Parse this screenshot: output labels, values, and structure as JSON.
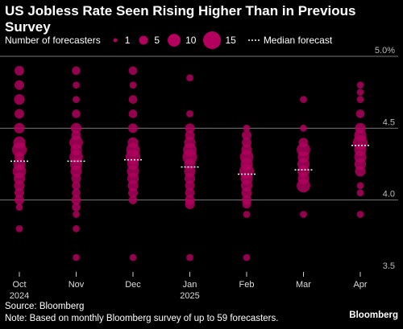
{
  "title": "US Jobless Rate Seen Rising Higher Than in Previous Survey",
  "legend": {
    "size_label": "Number of forecasters",
    "sizes": [
      "1",
      "5",
      "10",
      "15"
    ],
    "median_label": "Median forecast"
  },
  "colors": {
    "bubble": "#b3005e",
    "median": "#ffffff",
    "background": "#000000"
  },
  "footer": {
    "source": "Source: Bloomberg",
    "note": "Note: Based on monthly Bloomberg survey of up to 59 forecasters."
  },
  "brand": "Bloomberg",
  "chart_data": {
    "type": "scatter",
    "title": "US Jobless Rate Seen Rising Higher Than in Previous Survey",
    "ylim": [
      3.5,
      5.0
    ],
    "y_ticks": [
      "3.5",
      "4.0",
      "4.5",
      "5.0%"
    ],
    "categories": [
      {
        "label": "Oct",
        "sublabel": "2024"
      },
      {
        "label": "Nov",
        "sublabel": ""
      },
      {
        "label": "Dec",
        "sublabel": ""
      },
      {
        "label": "Jan",
        "sublabel": "2025"
      },
      {
        "label": "Feb",
        "sublabel": ""
      },
      {
        "label": "Mar",
        "sublabel": ""
      },
      {
        "label": "Apr",
        "sublabel": ""
      }
    ],
    "medians": [
      4.27,
      4.27,
      4.28,
      4.23,
      4.18,
      4.21,
      4.38
    ],
    "points": [
      [
        [
          4.9,
          3
        ],
        [
          4.8,
          3
        ],
        [
          4.7,
          4
        ],
        [
          4.6,
          3
        ],
        [
          4.5,
          4
        ],
        [
          4.4,
          6
        ],
        [
          4.35,
          10
        ],
        [
          4.3,
          3
        ],
        [
          4.25,
          6
        ],
        [
          4.2,
          8
        ],
        [
          4.15,
          5
        ],
        [
          4.1,
          4
        ],
        [
          4.05,
          3
        ],
        [
          4.0,
          3
        ],
        [
          3.95,
          1
        ],
        [
          3.8,
          1
        ]
      ],
      [
        [
          4.9,
          2
        ],
        [
          4.8,
          1
        ],
        [
          4.7,
          1
        ],
        [
          4.6,
          2
        ],
        [
          4.5,
          4
        ],
        [
          4.45,
          3
        ],
        [
          4.4,
          8
        ],
        [
          4.35,
          5
        ],
        [
          4.3,
          8
        ],
        [
          4.25,
          6
        ],
        [
          4.2,
          5
        ],
        [
          4.15,
          3
        ],
        [
          4.1,
          2
        ],
        [
          4.05,
          2
        ],
        [
          4.0,
          3
        ],
        [
          3.95,
          2
        ],
        [
          3.9,
          1
        ],
        [
          3.8,
          1
        ],
        [
          3.6,
          1
        ]
      ],
      [
        [
          4.9,
          2
        ],
        [
          4.8,
          1
        ],
        [
          4.7,
          2
        ],
        [
          4.6,
          2
        ],
        [
          4.5,
          3
        ],
        [
          4.4,
          4
        ],
        [
          4.35,
          8
        ],
        [
          4.3,
          10
        ],
        [
          4.25,
          5
        ],
        [
          4.2,
          6
        ],
        [
          4.15,
          5
        ],
        [
          4.1,
          4
        ],
        [
          4.05,
          3
        ],
        [
          4.0,
          2
        ],
        [
          3.6,
          1
        ]
      ],
      [
        [
          4.85,
          1
        ],
        [
          4.6,
          1
        ],
        [
          4.5,
          3
        ],
        [
          4.45,
          3
        ],
        [
          4.4,
          5
        ],
        [
          4.35,
          8
        ],
        [
          4.3,
          10
        ],
        [
          4.25,
          5
        ],
        [
          4.2,
          5
        ],
        [
          4.15,
          4
        ],
        [
          4.1,
          3
        ],
        [
          4.05,
          3
        ],
        [
          4.0,
          3
        ],
        [
          3.97,
          3
        ],
        [
          3.6,
          1
        ]
      ],
      [
        [
          4.5,
          1
        ],
        [
          4.45,
          3
        ],
        [
          4.4,
          3
        ],
        [
          4.35,
          4
        ],
        [
          4.3,
          8
        ],
        [
          4.25,
          6
        ],
        [
          4.2,
          10
        ],
        [
          4.15,
          6
        ],
        [
          4.1,
          5
        ],
        [
          4.05,
          4
        ],
        [
          4.0,
          3
        ],
        [
          3.97,
          2
        ],
        [
          3.9,
          1
        ],
        [
          3.6,
          1
        ]
      ],
      [
        [
          4.7,
          1
        ],
        [
          4.5,
          1
        ],
        [
          4.4,
          3
        ],
        [
          4.35,
          8
        ],
        [
          4.3,
          5
        ],
        [
          4.25,
          6
        ],
        [
          4.2,
          6
        ],
        [
          4.15,
          5
        ],
        [
          4.1,
          8
        ],
        [
          3.9,
          1
        ]
      ],
      [
        [
          4.8,
          1
        ],
        [
          4.75,
          1
        ],
        [
          4.7,
          1
        ],
        [
          4.6,
          2
        ],
        [
          4.5,
          4
        ],
        [
          4.45,
          6
        ],
        [
          4.4,
          10
        ],
        [
          4.35,
          6
        ],
        [
          4.3,
          6
        ],
        [
          4.25,
          5
        ],
        [
          4.2,
          4
        ],
        [
          4.1,
          1
        ],
        [
          4.05,
          1
        ],
        [
          3.9,
          1
        ]
      ]
    ]
  }
}
